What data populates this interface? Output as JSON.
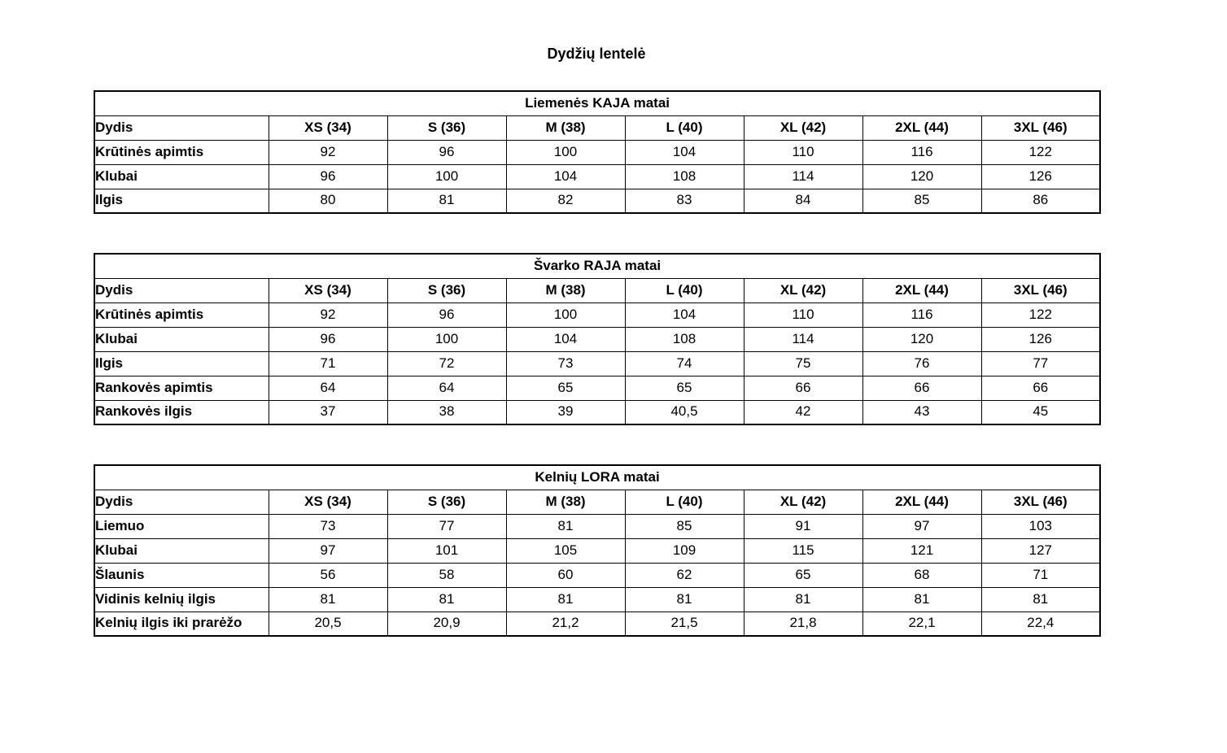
{
  "page_title": "Dydžių lentelė",
  "tables": [
    {
      "title": "Liemenės KAJA matai",
      "header": [
        "Dydis",
        "XS (34)",
        "S (36)",
        "M (38)",
        "L (40)",
        "XL (42)",
        "2XL (44)",
        "3XL (46)"
      ],
      "rows": [
        {
          "label": "Krūtinės apimtis",
          "values": [
            "92",
            "96",
            "100",
            "104",
            "110",
            "116",
            "122"
          ]
        },
        {
          "label": "Klubai",
          "values": [
            "96",
            "100",
            "104",
            "108",
            "114",
            "120",
            "126"
          ]
        },
        {
          "label": "Ilgis",
          "values": [
            "80",
            "81",
            "82",
            "83",
            "84",
            "85",
            "86"
          ]
        }
      ]
    },
    {
      "title": "Švarko RAJA matai",
      "header": [
        "Dydis",
        "XS (34)",
        "S (36)",
        "M (38)",
        "L (40)",
        "XL (42)",
        "2XL (44)",
        "3XL (46)"
      ],
      "rows": [
        {
          "label": "Krūtinės apimtis",
          "values": [
            "92",
            "96",
            "100",
            "104",
            "110",
            "116",
            "122"
          ]
        },
        {
          "label": "Klubai",
          "values": [
            "96",
            "100",
            "104",
            "108",
            "114",
            "120",
            "126"
          ]
        },
        {
          "label": "Ilgis",
          "values": [
            "71",
            "72",
            "73",
            "74",
            "75",
            "76",
            "77"
          ]
        },
        {
          "label": "Rankovės apimtis",
          "values": [
            "64",
            "64",
            "65",
            "65",
            "66",
            "66",
            "66"
          ]
        },
        {
          "label": "Rankovės ilgis",
          "values": [
            "37",
            "38",
            "39",
            "40,5",
            "42",
            "43",
            "45"
          ]
        }
      ]
    },
    {
      "title": "Kelnių LORA matai",
      "header": [
        "Dydis",
        "XS (34)",
        "S (36)",
        "M (38)",
        "L (40)",
        "XL (42)",
        "2XL (44)",
        "3XL (46)"
      ],
      "rows": [
        {
          "label": "Liemuo",
          "values": [
            "73",
            "77",
            "81",
            "85",
            "91",
            "97",
            "103"
          ]
        },
        {
          "label": "Klubai",
          "values": [
            "97",
            "101",
            "105",
            "109",
            "115",
            "121",
            "127"
          ]
        },
        {
          "label": "Šlaunis",
          "values": [
            "56",
            "58",
            "60",
            "62",
            "65",
            "68",
            "71"
          ]
        },
        {
          "label": "Vidinis kelnių ilgis",
          "values": [
            "81",
            "81",
            "81",
            "81",
            "81",
            "81",
            "81"
          ]
        },
        {
          "label": "Kelnių ilgis iki prarėžo",
          "values": [
            "20,5",
            "20,9",
            "21,2",
            "21,5",
            "21,8",
            "22,1",
            "22,4"
          ]
        }
      ]
    }
  ]
}
